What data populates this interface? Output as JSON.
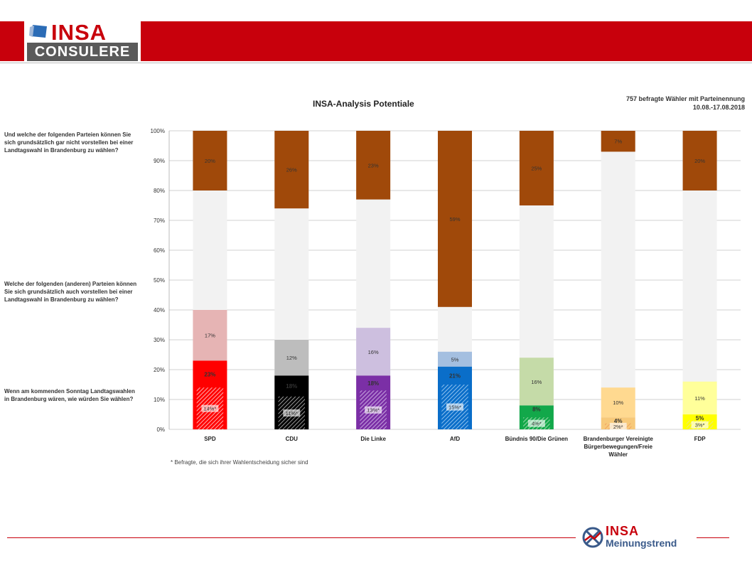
{
  "header": {
    "logo_insa": "INSA",
    "logo_consulere": "CONSULERE"
  },
  "sample": {
    "line1": "757 befragte Wähler mit Parteinennung",
    "line2": "10.08.-17.08.2018"
  },
  "questions": {
    "q1": "Und welche der folgenden Parteien können Sie sich grundsätzlich gar nicht vorstellen bei einer Landtagswahl in Brandenburg zu wählen?",
    "q2": "Welche der folgenden (anderen) Parteien können Sie sich grundsätzlich auch vorstellen bei einer Landtagswahl in Brandenburg zu wählen?",
    "q3": "Wenn am kommenden Sonntag Landtagswahlen in Brandenburg wären, wie würden Sie wählen?"
  },
  "footnote": "* Befragte, die sich ihrer Wahlentscheidung sicher sind",
  "brand": {
    "insa": "INSA",
    "meinungstrend": "Meinungstrend"
  },
  "chart_data": {
    "type": "bar",
    "stacked": true,
    "title": "INSA-Analysis Potentiale",
    "ylim": [
      0,
      100
    ],
    "yticks": [
      "0%",
      "10%",
      "20%",
      "30%",
      "40%",
      "50%",
      "60%",
      "70%",
      "80%",
      "90%",
      "100%"
    ],
    "grid": true,
    "categories": [
      "SPD",
      "CDU",
      "Die Linke",
      "AfD",
      "Bündnis 90/Die Grünen",
      "Brandenburger Vereinigte Bürgerbewegungen/Freie Wähler",
      "FDP"
    ],
    "category_lines": [
      [
        "SPD"
      ],
      [
        "CDU"
      ],
      [
        "Die Linke"
      ],
      [
        "AfD"
      ],
      [
        "Bündnis 90/Die Grünen"
      ],
      [
        "Brandenburger Vereinigte",
        "Bürgerbewegungen/Freie",
        "Wähler"
      ],
      [
        "FDP"
      ]
    ],
    "vote_sure": [
      14,
      11,
      13,
      15,
      4,
      2,
      3
    ],
    "vote_sure_labels": [
      "14%*",
      "11%*",
      "13%*",
      "15%*",
      "4%*",
      "2%*",
      "3%*"
    ],
    "vote": [
      23,
      18,
      18,
      21,
      8,
      4,
      5
    ],
    "vote_labels": [
      "23%",
      "18%",
      "18%",
      "21%",
      "8%",
      "4%",
      "5%"
    ],
    "potential": [
      17,
      12,
      16,
      5,
      16,
      10,
      11
    ],
    "potential_labels": [
      "17%",
      "12%",
      "16%",
      "5%",
      "16%",
      "10%",
      "11%"
    ],
    "reject": [
      20,
      26,
      23,
      59,
      25,
      7,
      20
    ],
    "reject_labels": [
      "20%",
      "26%",
      "23%",
      "59%",
      "25%",
      "7%",
      "20%"
    ],
    "colors": {
      "main": [
        "#ff0000",
        "#000000",
        "#7b2fa6",
        "#0a6ec9",
        "#12a84a",
        "#f7c97a",
        "#ffff00"
      ],
      "potential": [
        "#e6b4b4",
        "#bdbdbd",
        "#cdbfdf",
        "#a4bfe0",
        "#c5dba8",
        "#ffd990",
        "#ffff9a"
      ],
      "sure_hatch": [
        "#ffb3b3",
        "#9a9a9a",
        "#c8a8e0",
        "#8ec0ee",
        "#9ad8a8",
        "#f0a060",
        "#e6e68a"
      ],
      "neutral": "#f2f2f2",
      "reject": "#a0490a"
    }
  }
}
